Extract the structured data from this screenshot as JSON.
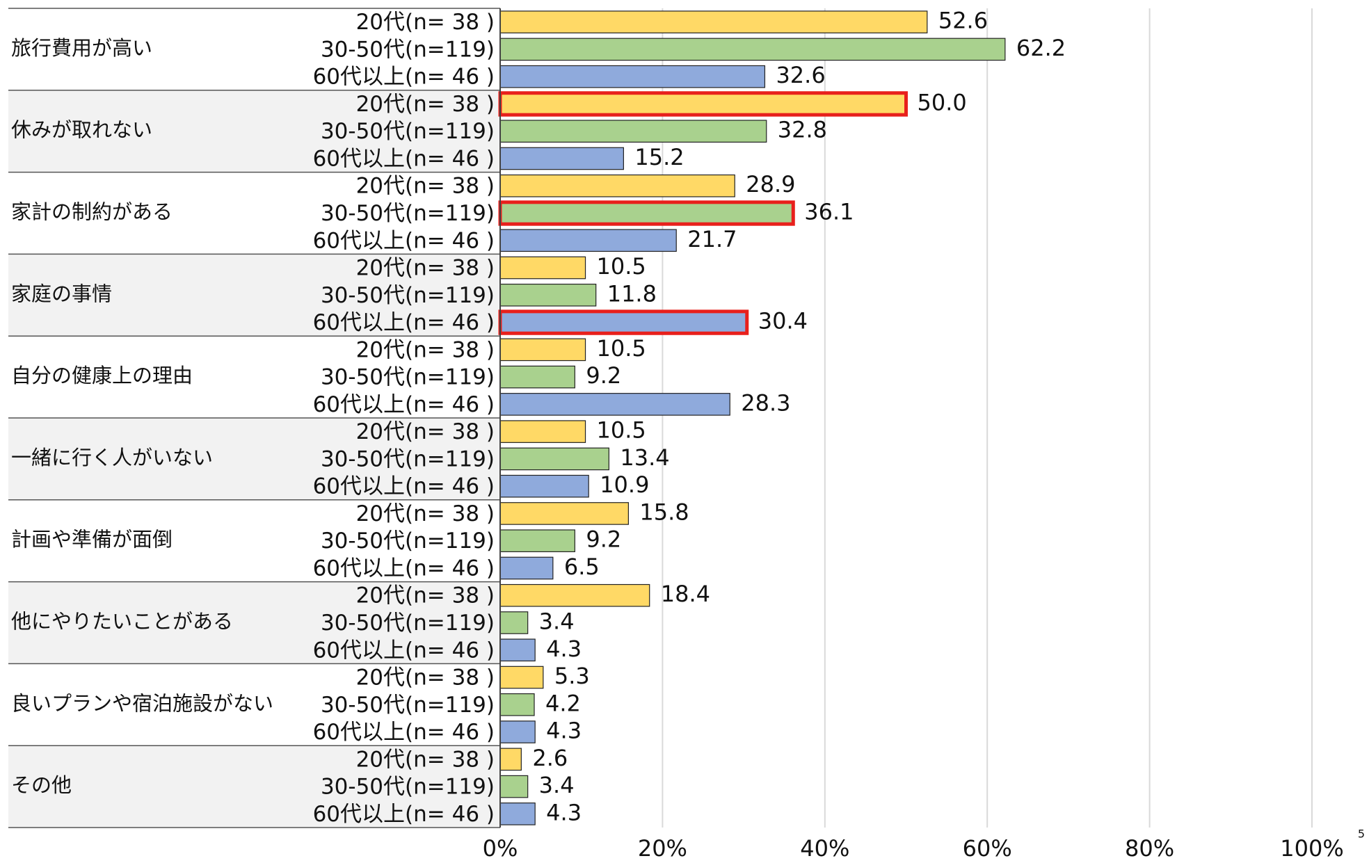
{
  "chart_data": {
    "type": "hbar",
    "categories": [
      "旅行費用が高い",
      "休みが取れない",
      "家計の制約がある",
      "家庭の事情",
      "自分の健康上の理由",
      "一緒に行く人がいない",
      "計画や準備が面倒",
      "他にやりたいことがある",
      "良いプランや宿泊施設がない",
      "その他"
    ],
    "series": [
      {
        "name": "20代(n= 38 )",
        "color": "#ffd966",
        "values": [
          52.6,
          50.0,
          28.9,
          10.5,
          10.5,
          10.5,
          15.8,
          18.4,
          5.3,
          2.6
        ],
        "value_labels": [
          "52.6",
          "50.0",
          "28.9",
          "10.5",
          "10.5",
          "10.5",
          "15.8",
          "18.4",
          "5.3",
          "2.6"
        ]
      },
      {
        "name": "30-50代(n=119)",
        "color": "#a9d18e",
        "values": [
          62.2,
          32.8,
          36.1,
          11.8,
          9.2,
          13.4,
          9.2,
          3.4,
          4.2,
          3.4
        ],
        "value_labels": [
          "62.2",
          "32.8",
          "36.1",
          "11.8",
          "9.2",
          "13.4",
          "9.2",
          "3.4",
          "4.2",
          "3.4"
        ]
      },
      {
        "name": "60代以上(n= 46 )",
        "color": "#8faadc",
        "values": [
          32.6,
          15.2,
          21.7,
          30.4,
          28.3,
          10.9,
          6.5,
          4.3,
          4.3,
          4.3
        ],
        "value_labels": [
          "32.6",
          "15.2",
          "21.7",
          "30.4",
          "28.3",
          "10.9",
          "6.5",
          "4.3",
          "4.3",
          "4.3"
        ]
      }
    ],
    "highlight": [
      [
        1,
        0
      ],
      [
        2,
        1
      ],
      [
        3,
        2
      ]
    ],
    "highlight_color": "#e8201c",
    "xlim": [
      0,
      100
    ],
    "xticks": [
      {
        "value": 0,
        "label": "0%"
      },
      {
        "value": 20,
        "label": "20%"
      },
      {
        "value": 40,
        "label": "40%"
      },
      {
        "value": 60,
        "label": "60%"
      },
      {
        "value": 80,
        "label": "80%"
      },
      {
        "value": 100,
        "label": "100%"
      }
    ],
    "grid": true
  },
  "page_number": "5"
}
